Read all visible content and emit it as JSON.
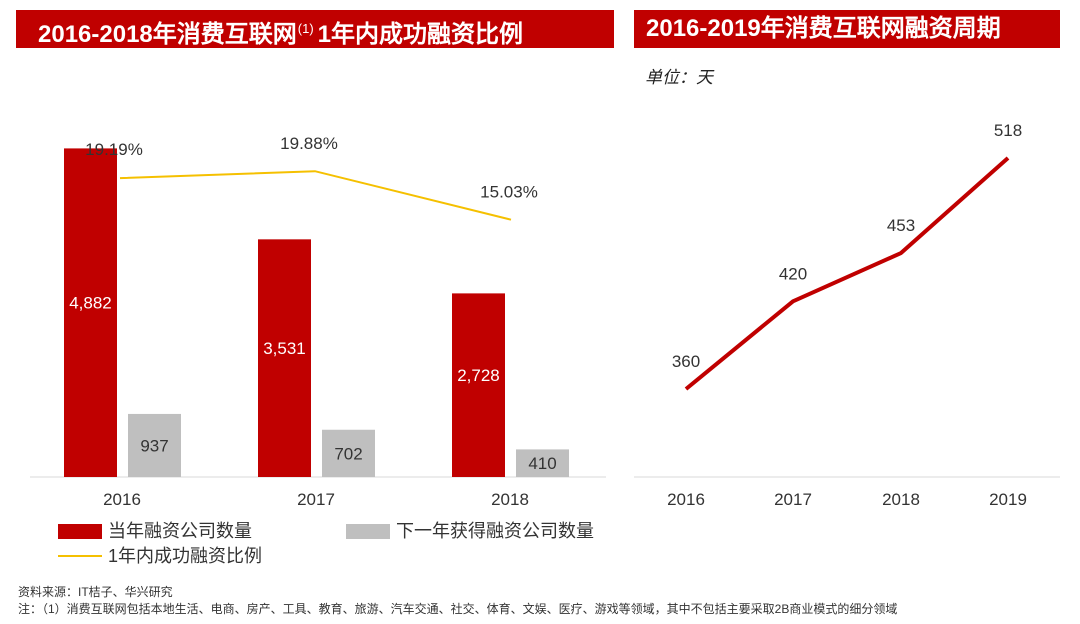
{
  "left_panel": {
    "title_main": "2016-2018年消费互联网",
    "title_sup": "(1)",
    "title_tail": "1年内成功融资比例"
  },
  "right_panel": {
    "title": "2016-2019年消费互联网融资周期",
    "unit": "单位：天"
  },
  "footer": {
    "source": "资料来源：IT桔子、华兴研究",
    "note": "注：（1）消费互联网包括本地生活、电商、房产、工具、教育、旅游、汽车交通、社交、体育、文娱、医疗、游戏等领域，其中不包括主要采取2B商业模式的细分领域"
  },
  "colors": {
    "red": "#c00000",
    "gray": "#bfbfbf",
    "yellow": "#f5c000"
  },
  "chart_data": [
    {
      "type": "bar",
      "categories": [
        "2016",
        "2017",
        "2018"
      ],
      "series": [
        {
          "name": "当年融资公司数量",
          "values": [
            4882,
            3531,
            2728
          ],
          "labels": [
            "4,882",
            "3,531",
            "2,728"
          ],
          "color": "#c00000"
        },
        {
          "name": "下一年获得融资公司数量",
          "values": [
            937,
            702,
            410
          ],
          "labels": [
            "937",
            "702",
            "410"
          ],
          "color": "#bfbfbf"
        }
      ],
      "line_series": {
        "name": "1年内成功融资比例",
        "values": [
          19.19,
          19.88,
          15.03
        ],
        "labels": [
          "19.19%",
          "19.88%",
          "15.03%"
        ],
        "color": "#f5c000"
      },
      "ylim": [
        0,
        5200
      ],
      "grid": false,
      "legend": "bottom"
    },
    {
      "type": "line",
      "x": [
        "2016",
        "2017",
        "2018",
        "2019"
      ],
      "values": [
        360,
        420,
        453,
        518
      ],
      "labels": [
        "360",
        "420",
        "453",
        "518"
      ],
      "color": "#c00000",
      "grid": false
    }
  ]
}
